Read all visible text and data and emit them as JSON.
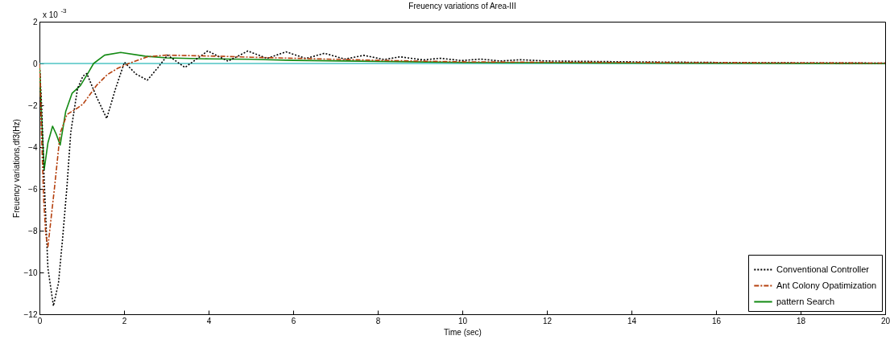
{
  "chart_data": {
    "type": "line",
    "title": "Freuency variations of Area-III",
    "xlabel": "Time (sec)",
    "ylabel": "Freuency variations,df3(Hz)",
    "annotations": [
      "x 10$^{-3}$"
    ],
    "xlim": [
      0,
      20
    ],
    "xticks": [
      0,
      2,
      4,
      6,
      8,
      10,
      12,
      14,
      16,
      18,
      20
    ],
    "ylim": [
      -12,
      2
    ],
    "yticks": [
      -12,
      -10,
      -8,
      -6,
      -4,
      -2,
      0,
      2
    ],
    "grid": false,
    "legend": "bottom right",
    "series": [
      {
        "name": "Conventional Controller",
        "color": "#000000",
        "line_style": "dotted",
        "x": [
          0,
          0.05,
          0.1,
          0.2,
          0.33,
          0.45,
          0.55,
          0.65,
          0.74,
          0.9,
          1.03,
          1.12,
          1.35,
          1.59,
          1.8,
          2.01,
          2.28,
          2.55,
          2.8,
          3.03,
          3.44,
          3.98,
          4.46,
          4.93,
          5.38,
          5.83,
          6.3,
          6.74,
          7.22,
          7.67,
          8.15,
          8.53,
          9.07,
          9.48,
          9.98,
          10.43,
          10.9,
          11.38,
          12,
          13,
          14,
          16,
          18,
          20
        ],
        "values": [
          0,
          -2,
          -5,
          -9.8,
          -11.6,
          -10.5,
          -8.3,
          -5.9,
          -3.3,
          -1.2,
          -0.6,
          -0.48,
          -1.6,
          -2.63,
          -1.2,
          0.06,
          -0.5,
          -0.8,
          -0.2,
          0.4,
          -0.19,
          0.6,
          0.11,
          0.6,
          0.24,
          0.56,
          0.24,
          0.49,
          0.21,
          0.39,
          0.19,
          0.32,
          0.17,
          0.25,
          0.14,
          0.21,
          0.12,
          0.18,
          0.12,
          0.1,
          0.08,
          0.05,
          0.03,
          0.02
        ]
      },
      {
        "name": "Ant Colony Opatimization",
        "color": "#b5400e",
        "line_style": "dashed",
        "x": [
          0,
          0.02,
          0.05,
          0.1,
          0.15,
          0.2,
          0.36,
          0.49,
          0.65,
          0.9,
          1.03,
          1.35,
          1.6,
          1.85,
          2.11,
          2.55,
          3,
          3.5,
          4.4,
          5,
          6,
          7,
          8,
          10,
          12,
          15,
          20
        ],
        "values": [
          0,
          -1,
          -3.5,
          -6.5,
          -8.2,
          -8.77,
          -5.86,
          -3.33,
          -2.44,
          -2.13,
          -1.94,
          -1.05,
          -0.54,
          -0.23,
          0,
          0.32,
          0.4,
          0.38,
          0.34,
          0.3,
          0.25,
          0.2,
          0.15,
          0.08,
          0.06,
          0.04,
          0.02
        ]
      },
      {
        "name": "pattern Search",
        "color": "#138a13",
        "line_style": "solid",
        "x": [
          0,
          0.04,
          0.11,
          0.2,
          0.31,
          0.4,
          0.49,
          0.62,
          0.77,
          0.97,
          1.16,
          1.28,
          1.54,
          1.92,
          2.5,
          3,
          4,
          5,
          6,
          8,
          10,
          14,
          20
        ],
        "values": [
          0,
          -2.06,
          -5.1,
          -3.8,
          -3,
          -3.4,
          -3.9,
          -2.3,
          -1.43,
          -1.05,
          -0.42,
          0,
          0.4,
          0.53,
          0.35,
          0.27,
          0.22,
          0.2,
          0.15,
          0.1,
          0.05,
          0.02,
          0
        ]
      },
      {
        "color": "#4ec5c5",
        "line_style": "solid",
        "x": [
          0,
          20
        ],
        "values": [
          0,
          0
        ]
      }
    ]
  }
}
